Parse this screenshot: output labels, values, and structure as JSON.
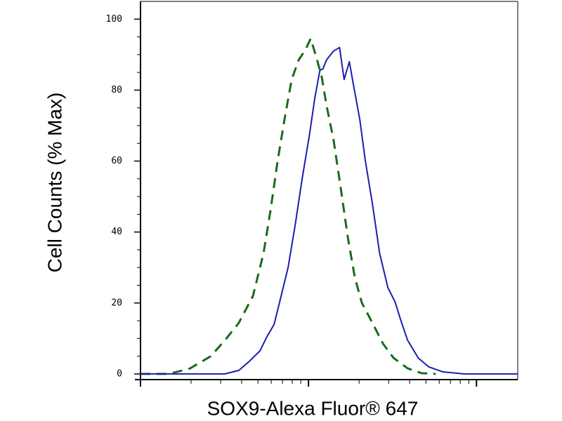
{
  "chart_data": {
    "type": "line",
    "xlabel": "SOX9-Alexa Fluor® 647",
    "ylabel": "Cell Counts (% Max)",
    "xscale": "log",
    "xlim": [
      1,
      176
    ],
    "xticks": [
      1,
      10,
      100
    ],
    "ylim": [
      -1,
      105
    ],
    "yticks": [
      0,
      20,
      40,
      60,
      80,
      100
    ],
    "series": [
      {
        "color": "#1a6b1a",
        "dash": true,
        "x": [
          1,
          1.47,
          1.96,
          2.62,
          3.18,
          3.85,
          4.67,
          5.4,
          5.94,
          6.55,
          7.21,
          7.94,
          8.74,
          9.62,
          10.3,
          11.1,
          12.0,
          12.8,
          14.1,
          15.6,
          17.2,
          18.9,
          20.8,
          24.0,
          27.8,
          32.1,
          38.9,
          47.2,
          57.2
        ],
        "values": [
          0,
          0,
          1.5,
          5,
          9.5,
          14.4,
          22,
          34,
          46,
          60,
          72,
          83,
          88.5,
          91.5,
          94.5,
          89.5,
          83.6,
          75.7,
          66,
          52,
          38,
          27,
          20,
          14.4,
          8.5,
          4.5,
          1.6,
          0.2,
          0
        ]
      },
      {
        "color": "#1c1cb4",
        "dash": false,
        "x": [
          1,
          2.16,
          3.18,
          3.85,
          4.45,
          5.14,
          5.66,
          6.24,
          6.87,
          7.56,
          8.33,
          9.17,
          10.1,
          10.9,
          11.7,
          12.2,
          12.8,
          14.1,
          15.3,
          16.3,
          17.5,
          18.5,
          20.2,
          21.8,
          24.0,
          26.5,
          29.7,
          32.7,
          35.3,
          38.9,
          45.0,
          51.9,
          63.0,
          84.1,
          176
        ],
        "values": [
          0,
          0,
          0,
          1,
          3.6,
          6.5,
          10.5,
          14,
          22,
          30,
          42,
          55,
          67,
          77.7,
          85.6,
          86,
          88.5,
          91,
          92,
          83,
          88,
          81.6,
          71.7,
          60,
          48,
          34,
          24.3,
          20.4,
          15.4,
          9.5,
          4.5,
          2,
          0.6,
          0,
          0
        ]
      }
    ]
  }
}
